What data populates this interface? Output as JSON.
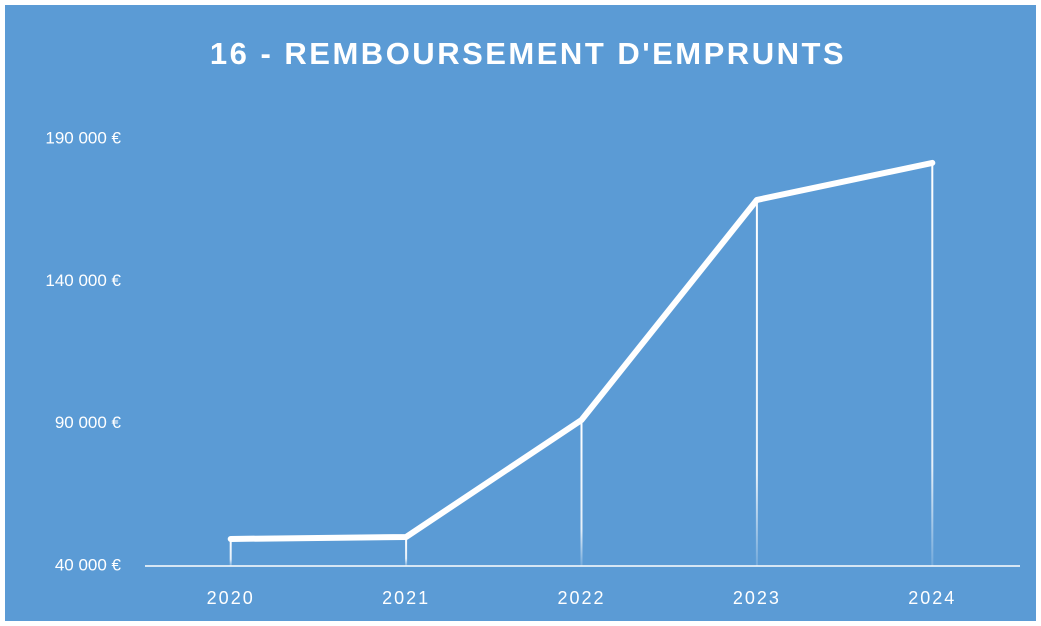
{
  "chart_data": {
    "type": "line",
    "title": "16 - REMBOURSEMENT D'EMPRUNTS",
    "categories": [
      "2020",
      "2021",
      "2022",
      "2023",
      "2024"
    ],
    "values": [
      49500,
      50200,
      91300,
      168600,
      181600
    ],
    "color": "#ffffff",
    "ylim": [
      40000,
      190000
    ],
    "yticks": [
      {
        "value": 40000,
        "label": "40 000 €"
      },
      {
        "value": 90000,
        "label": "90 000 €"
      },
      {
        "value": 140000,
        "label": "140 000 €"
      },
      {
        "value": 190000,
        "label": "190 000 €"
      }
    ],
    "drop_lines": true
  }
}
